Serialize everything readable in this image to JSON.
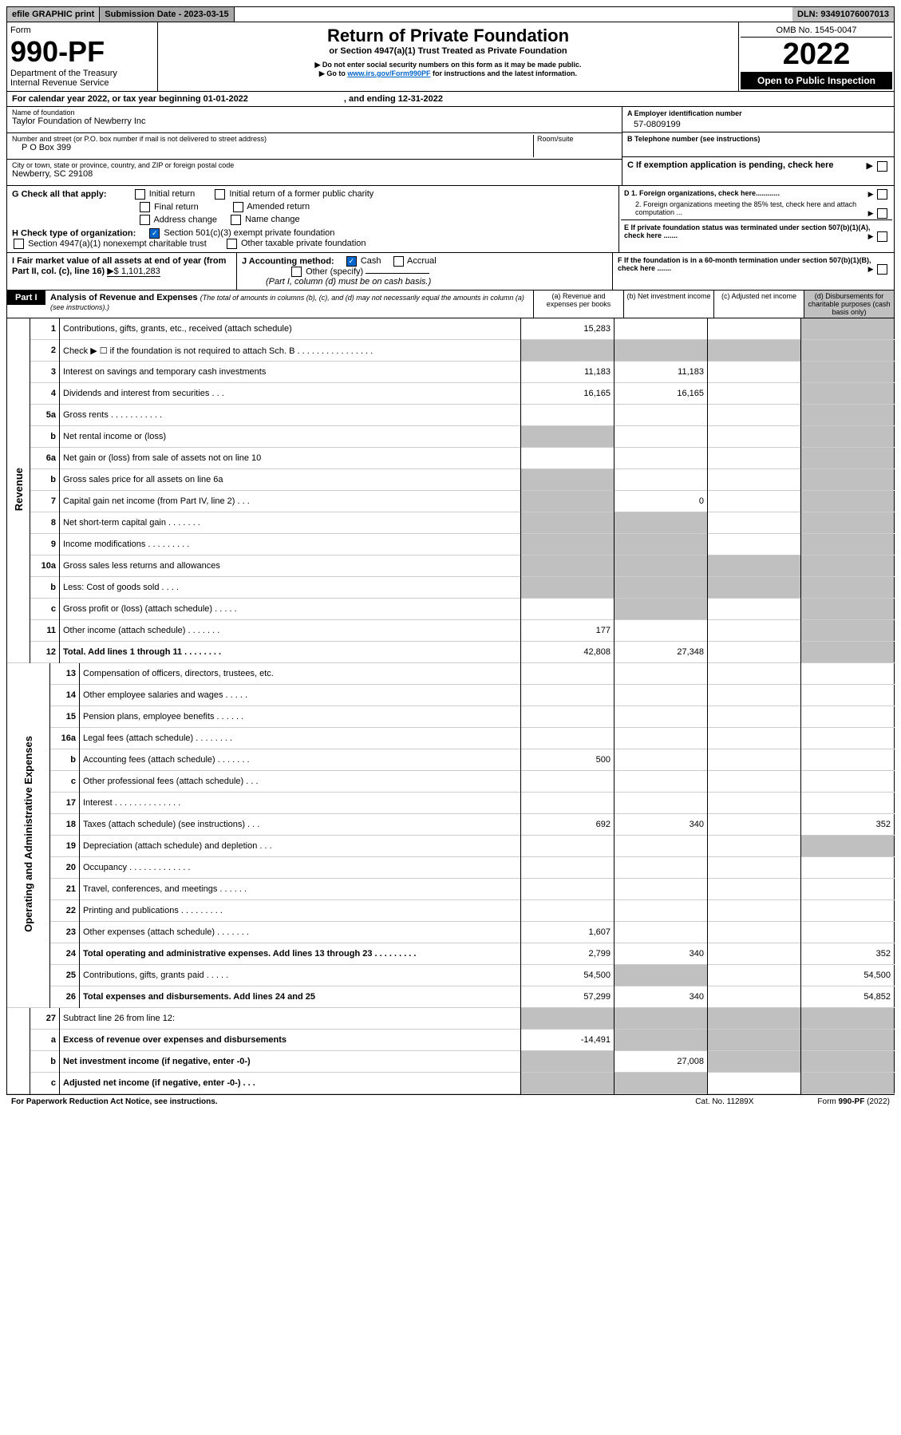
{
  "top": {
    "efile": "efile GRAPHIC print",
    "sub_label": "Submission Date - 2023-03-15",
    "dln": "DLN: 93491076007013"
  },
  "hdr": {
    "form": "Form",
    "num": "990-PF",
    "dept": "Department of the Treasury",
    "irs": "Internal Revenue Service",
    "title": "Return of Private Foundation",
    "sub": "or Section 4947(a)(1) Trust Treated as Private Foundation",
    "warn1": "▶ Do not enter social security numbers on this form as it may be made public.",
    "warn2": "▶ Go to ",
    "link": "www.irs.gov/Form990PF",
    "warn2b": " for instructions and the latest information.",
    "omb": "OMB No. 1545-0047",
    "year": "2022",
    "open": "Open to Public Inspection"
  },
  "cal": "For calendar year 2022, or tax year beginning 01-01-2022",
  "cal_end": ", and ending 12-31-2022",
  "f": {
    "name_lbl": "Name of foundation",
    "name": "Taylor Foundation of Newberry Inc",
    "addr_lbl": "Number and street (or P.O. box number if mail is not delivered to street address)",
    "room": "Room/suite",
    "addr": "P O Box 399",
    "city_lbl": "City or town, state or province, country, and ZIP or foreign postal code",
    "city": "Newberry, SC  29108",
    "a_lbl": "A Employer identification number",
    "a": "57-0809199",
    "b_lbl": "B Telephone number (see instructions)",
    "b": "",
    "c": "C If exemption application is pending, check here"
  },
  "g": {
    "lbl": "G Check all that apply:",
    "opts": [
      "Initial return",
      "Initial return of a former public charity",
      "Final return",
      "Amended return",
      "Address change",
      "Name change"
    ],
    "h": "H Check type of organization:",
    "h1": "Section 501(c)(3) exempt private foundation",
    "h2": "Section 4947(a)(1) nonexempt charitable trust",
    "h3": "Other taxable private foundation",
    "d1": "D 1. Foreign organizations, check here............",
    "d2": "2. Foreign organizations meeting the 85% test, check here and attach computation ...",
    "e": "E  If private foundation status was terminated under section 507(b)(1)(A), check here ......."
  },
  "ij": {
    "i": "I Fair market value of all assets at end of year (from Part II, col. (c), line 16)",
    "i_val": "▶$  1,101,283",
    "j": "J Accounting method:",
    "cash": "Cash",
    "accrual": "Accrual",
    "other": "Other (specify)",
    "note": "(Part I, column (d) must be on cash basis.)",
    "f": "F  If the foundation is in a 60-month termination under section 507(b)(1)(B), check here ......."
  },
  "p1": {
    "tag": "Part I",
    "title": "Analysis of Revenue and Expenses",
    "note": "(The total of amounts in columns (b), (c), and (d) may not necessarily equal the amounts in column (a) (see instructions).)",
    "ca": "(a)   Revenue and expenses per books",
    "cb": "(b)   Net investment income",
    "cc": "(c)   Adjusted net income",
    "cd": "(d)  Disbursements for charitable purposes (cash basis only)"
  },
  "side": {
    "rev": "Revenue",
    "exp": "Operating and Administrative Expenses"
  },
  "rows": [
    {
      "n": "1",
      "d": "Contributions, gifts, grants, etc., received (attach schedule)",
      "a": "15,283"
    },
    {
      "n": "2",
      "d": "Check ▶ ☐ if the foundation is not required to attach Sch. B   .   .   .   .   .   .   .   .   .   .   .   .   .   .   .   .",
      "shade": 1
    },
    {
      "n": "3",
      "d": "Interest on savings and temporary cash investments",
      "a": "11,183",
      "b": "11,183"
    },
    {
      "n": "4",
      "d": "Dividends and interest from securities     .     .     .",
      "a": "16,165",
      "b": "16,165"
    },
    {
      "n": "5a",
      "d": "Gross rents     .     .     .     .     .     .     .     .     .     .     ."
    },
    {
      "n": "b",
      "d": "Net rental income or (loss)",
      "shade_a": 1
    },
    {
      "n": "6a",
      "d": "Net gain or (loss) from sale of assets not on line 10"
    },
    {
      "n": "b",
      "d": "Gross sales price for all assets on line 6a",
      "shade_a": 1
    },
    {
      "n": "7",
      "d": "Capital gain net income (from Part IV, line 2)    .    .    .",
      "shade_a": 1,
      "b": "0"
    },
    {
      "n": "8",
      "d": "Net short-term capital gain   .   .   .   .   .   .   .",
      "shade_a": 1,
      "shade_b": 1
    },
    {
      "n": "9",
      "d": "Income modifications  .   .   .   .   .   .   .   .   .",
      "shade_a": 1,
      "shade_b": 1
    },
    {
      "n": "10a",
      "d": "Gross sales less returns and allowances",
      "shade_a": 1,
      "shade_b": 1,
      "shade_c": 1
    },
    {
      "n": "b",
      "d": "Less: Cost of goods sold     .     .     .     .",
      "shade_a": 1,
      "shade_b": 1,
      "shade_c": 1
    },
    {
      "n": "c",
      "d": "Gross profit or (loss) (attach schedule)     .     .     .     .     .",
      "shade_b": 1
    },
    {
      "n": "11",
      "d": "Other income (attach schedule)    .    .    .    .    .    .    .",
      "a": "177"
    },
    {
      "n": "12",
      "d": "Total. Add lines 1 through 11    .    .    .    .    .    .    .    .",
      "a": "42,808",
      "b": "27,348",
      "bold": 1
    }
  ],
  "exp_rows": [
    {
      "n": "13",
      "d": "Compensation of officers, directors, trustees, etc."
    },
    {
      "n": "14",
      "d": "Other employee salaries and wages    .    .    .    .    ."
    },
    {
      "n": "15",
      "d": "Pension plans, employee benefits   .   .   .   .   .   ."
    },
    {
      "n": "16a",
      "d": "Legal fees (attach schedule)  .   .   .   .   .   .   .   ."
    },
    {
      "n": "b",
      "d": "Accounting fees (attach schedule)  .   .   .   .   .   .   .",
      "a": "500"
    },
    {
      "n": "c",
      "d": "Other professional fees (attach schedule)     .     .     ."
    },
    {
      "n": "17",
      "d": "Interest  .   .   .   .   .   .   .   .   .   .   .   .   .   ."
    },
    {
      "n": "18",
      "d": "Taxes (attach schedule) (see instructions)      .      .      .",
      "a": "692",
      "b": "340",
      "dd": "352"
    },
    {
      "n": "19",
      "d": "Depreciation (attach schedule) and depletion    .    .    .",
      "shade_d": 1
    },
    {
      "n": "20",
      "d": "Occupancy  .   .   .   .   .   .   .   .   .   .   .   .   ."
    },
    {
      "n": "21",
      "d": "Travel, conferences, and meetings  .   .   .   .   .   ."
    },
    {
      "n": "22",
      "d": "Printing and publications  .   .   .   .   .   .   .   .   ."
    },
    {
      "n": "23",
      "d": "Other expenses (attach schedule)  .   .   .   .   .   .   .",
      "a": "1,607"
    },
    {
      "n": "24",
      "d": "Total operating and administrative expenses. Add lines 13 through 23    .    .    .    .    .    .    .    .    .",
      "a": "2,799",
      "b": "340",
      "dd": "352",
      "bold": 1
    },
    {
      "n": "25",
      "d": "Contributions, gifts, grants paid      .      .      .      .      .",
      "a": "54,500",
      "shade_b": 1,
      "dd": "54,500"
    },
    {
      "n": "26",
      "d": "Total expenses and disbursements. Add lines 24 and 25",
      "a": "57,299",
      "b": "340",
      "dd": "54,852",
      "bold": 1
    }
  ],
  "bottom_rows": [
    {
      "n": "27",
      "d": "Subtract line 26 from line 12:",
      "shade_a": 1,
      "shade_b": 1,
      "shade_c": 1,
      "shade_d": 1
    },
    {
      "n": "a",
      "d": "Excess of revenue over expenses and disbursements",
      "a": "-14,491",
      "shade_b": 1,
      "shade_c": 1,
      "shade_d": 1,
      "bold": 1
    },
    {
      "n": "b",
      "d": "Net investment income (if negative, enter -0-)",
      "shade_a": 1,
      "b": "27,008",
      "shade_c": 1,
      "shade_d": 1,
      "bold": 1
    },
    {
      "n": "c",
      "d": "Adjusted net income (if negative, enter -0-)    .    .    .",
      "shade_a": 1,
      "shade_b": 1,
      "shade_d": 1,
      "bold": 1
    }
  ],
  "foot": {
    "l": "For Paperwork Reduction Act Notice, see instructions.",
    "m": "Cat. No. 11289X",
    "r": "Form 990-PF (2022)"
  }
}
